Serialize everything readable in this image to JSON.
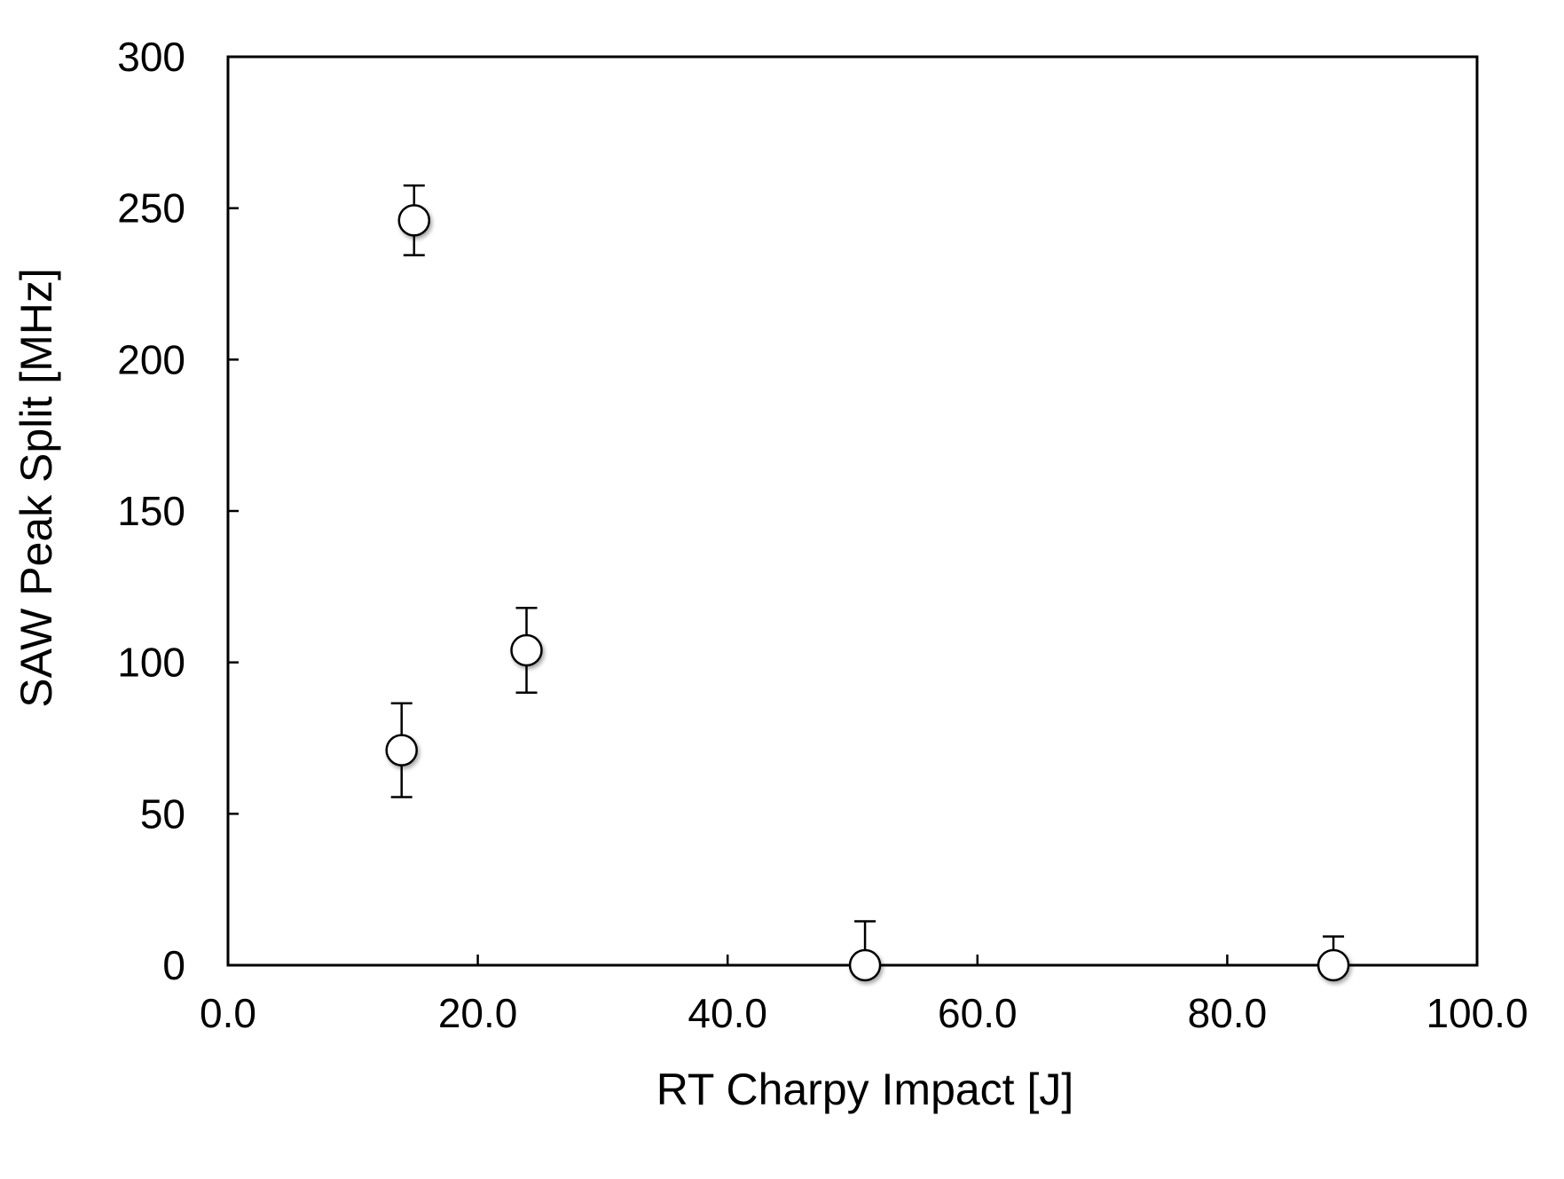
{
  "chart_data": {
    "type": "scatter",
    "title": "",
    "xlabel": "RT Charpy Impact [J]",
    "ylabel": "SAW Peak Split [MHz]",
    "xlim": [
      0,
      100
    ],
    "ylim": [
      0,
      300
    ],
    "x_ticks": [
      0,
      20,
      40,
      60,
      80,
      100
    ],
    "x_tick_labels": [
      "0.0",
      "20.0",
      "40.0",
      "60.0",
      "80.0",
      "100.0"
    ],
    "y_ticks": [
      0,
      50,
      100,
      150,
      200,
      250,
      300
    ],
    "y_tick_labels": [
      "0",
      "50",
      "100",
      "150",
      "200",
      "250",
      "300"
    ],
    "grid": false,
    "legend": "none",
    "marker": "open-circle",
    "series": [
      {
        "points": [
          {
            "x": 14.9,
            "y": 246,
            "err_low": 11.5,
            "err_high": 11.5
          },
          {
            "x": 13.9,
            "y": 71,
            "err_low": 15.5,
            "err_high": 15.5
          },
          {
            "x": 23.9,
            "y": 104,
            "err_low": 14,
            "err_high": 14
          },
          {
            "x": 51.0,
            "y": 0,
            "err_low": 0,
            "err_high": 14.5
          },
          {
            "x": 88.5,
            "y": 0,
            "err_low": 0,
            "err_high": 9.5
          }
        ]
      }
    ],
    "colors": {
      "axis": "#000000",
      "marker_fill": "#ffffff",
      "marker_stroke": "#000000"
    }
  }
}
